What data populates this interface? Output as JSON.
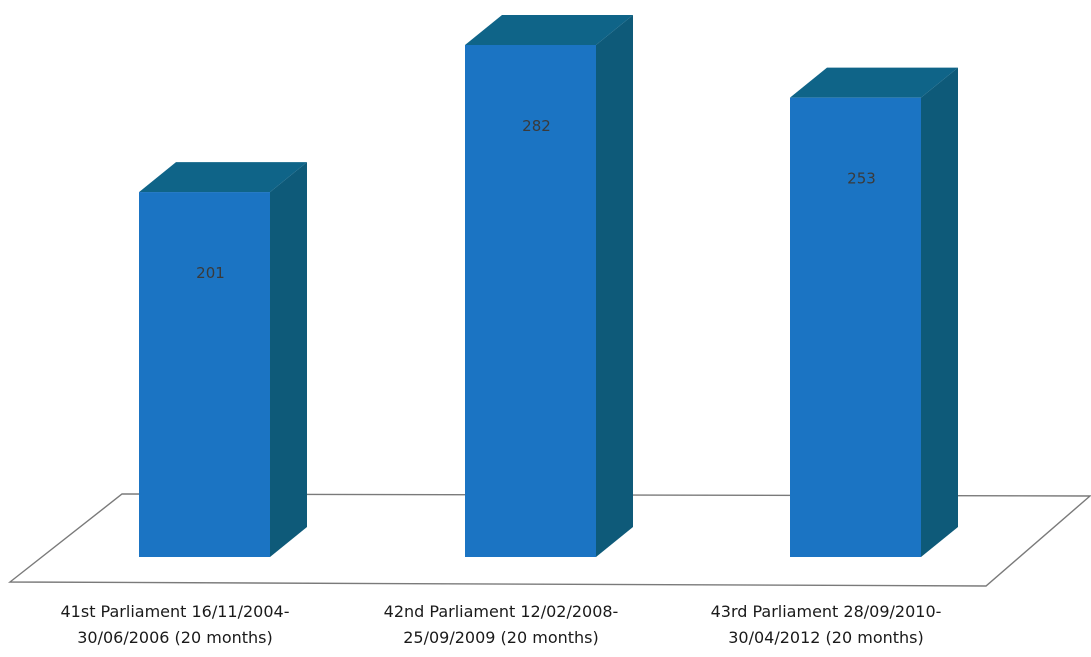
{
  "chart_data": {
    "type": "bar",
    "categories": [
      [
        "41st Parliament 16/11/2004-",
        "30/06/2006 (20 months)"
      ],
      [
        "42nd Parliament 12/02/2008-",
        "25/09/2009 (20 months)"
      ],
      [
        "43rd Parliament 28/09/2010-",
        "30/04/2012 (20 months)"
      ]
    ],
    "values": [
      201,
      282,
      253
    ],
    "data_labels": [
      "201",
      "282",
      "253"
    ],
    "title": "",
    "xlabel": "",
    "ylabel": "",
    "ylim": [
      0,
      300
    ],
    "grid": false,
    "legend": "none",
    "style": "3d-column",
    "colors": {
      "front": "#1b74c3",
      "side": "#0e5a79",
      "top": "#0f6488",
      "floor_stroke": "#7a7a7a"
    }
  }
}
